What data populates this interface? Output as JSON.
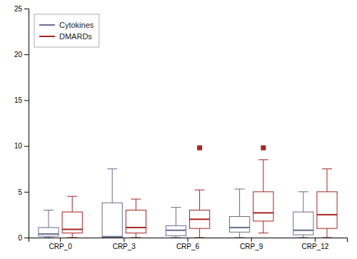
{
  "chart_data": {
    "type": "box",
    "categories": [
      "CRP_0",
      "CRP_3",
      "CRP_6",
      "CRP_9",
      "CRP_12"
    ],
    "series": [
      {
        "name": "Cytokines",
        "color": "#6a6a8c",
        "values": [
          {
            "whislo": 0.0,
            "q1": 0.15,
            "med": 0.4,
            "q3": 1.1,
            "whishi": 3.0
          },
          {
            "whislo": 0.0,
            "q1": 0.0,
            "med": 0.1,
            "q3": 3.8,
            "whishi": 7.5
          },
          {
            "whislo": 0.0,
            "q1": 0.2,
            "med": 0.8,
            "q3": 1.3,
            "whishi": 3.3
          },
          {
            "whislo": 0.0,
            "q1": 0.6,
            "med": 1.1,
            "q3": 2.3,
            "whishi": 5.3
          },
          {
            "whislo": 0.0,
            "q1": 0.3,
            "med": 0.8,
            "q3": 2.8,
            "whishi": 5.0
          }
        ]
      },
      {
        "name": "DMARDs",
        "color": "#aa2222",
        "values": [
          {
            "whislo": 0.0,
            "q1": 0.5,
            "med": 0.9,
            "q3": 2.8,
            "whishi": 4.5
          },
          {
            "whislo": 0.0,
            "q1": 0.5,
            "med": 1.1,
            "q3": 3.0,
            "whishi": 4.2
          },
          {
            "whislo": 0.0,
            "q1": 1.0,
            "med": 2.0,
            "q3": 3.0,
            "whishi": 5.2,
            "fliers": [
              9.8
            ]
          },
          {
            "whislo": 0.5,
            "q1": 1.8,
            "med": 2.7,
            "q3": 5.0,
            "whishi": 8.5,
            "fliers": [
              9.8
            ]
          },
          {
            "whislo": 0.0,
            "q1": 1.0,
            "med": 2.5,
            "q3": 5.0,
            "whishi": 7.5
          }
        ]
      }
    ],
    "ylim": [
      0,
      25
    ],
    "yticks": [
      0,
      5,
      10,
      15,
      20,
      25
    ],
    "grid": false,
    "legend": "upper left"
  }
}
